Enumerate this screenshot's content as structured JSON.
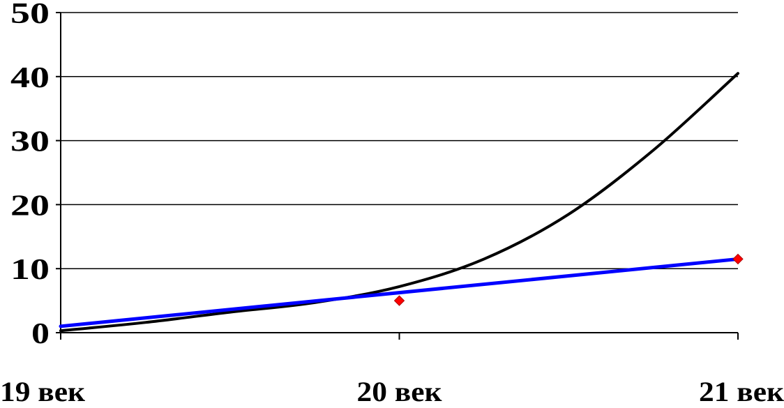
{
  "chart_data": {
    "type": "line",
    "categories": [
      "19 век",
      "20 век",
      "21 век"
    ],
    "yticks": [
      "0",
      "10",
      "20",
      "30",
      "40",
      "50"
    ],
    "ylim": [
      0,
      50
    ],
    "grid": true,
    "series": [
      {
        "color": "#000000",
        "curve": "exponential",
        "points": [
          [
            0,
            0.3
          ],
          [
            0.25,
            1.6
          ],
          [
            0.5,
            3.2
          ],
          [
            0.75,
            4.7
          ],
          [
            1,
            7.2
          ],
          [
            1.25,
            11.5
          ],
          [
            1.5,
            18.5
          ],
          [
            1.75,
            28.5
          ],
          [
            2,
            40.5
          ]
        ]
      },
      {
        "color": "#0000ff",
        "curve": "linear",
        "marker_color": "#ff0000",
        "points": [
          [
            0,
            1
          ],
          [
            1,
            5
          ],
          [
            2,
            11.5
          ]
        ]
      }
    ]
  }
}
